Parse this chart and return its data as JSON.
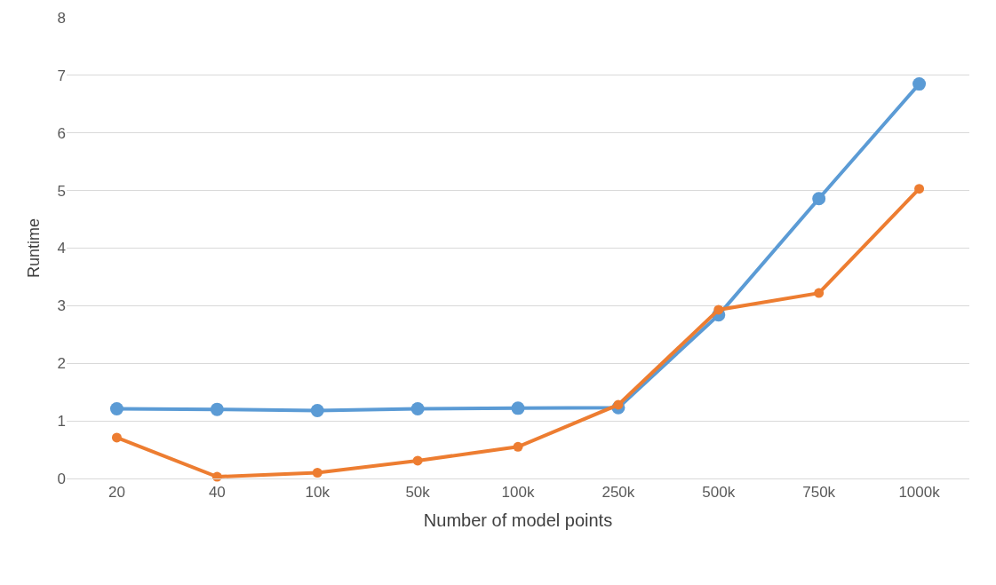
{
  "chart_data": {
    "type": "line",
    "xlabel": "Number of model points",
    "ylabel": "Runtime",
    "categories": [
      "20",
      "40",
      "10k",
      "50k",
      "100k",
      "250k",
      "500k",
      "750k",
      "1000k"
    ],
    "series": [
      {
        "color": "#5b9bd5",
        "values": [
          1.21,
          1.2,
          1.18,
          1.21,
          1.22,
          1.23,
          2.84,
          4.86,
          6.85
        ]
      },
      {
        "color": "#ed7d31",
        "values": [
          0.71,
          0.03,
          0.1,
          0.31,
          0.55,
          1.28,
          2.93,
          3.22,
          5.03
        ]
      }
    ],
    "ylim": [
      0,
      8
    ],
    "yticks": [
      0,
      1,
      2,
      3,
      4,
      5,
      6,
      7,
      8
    ],
    "grid": "y",
    "marker": "circle",
    "line_style": "solid"
  }
}
